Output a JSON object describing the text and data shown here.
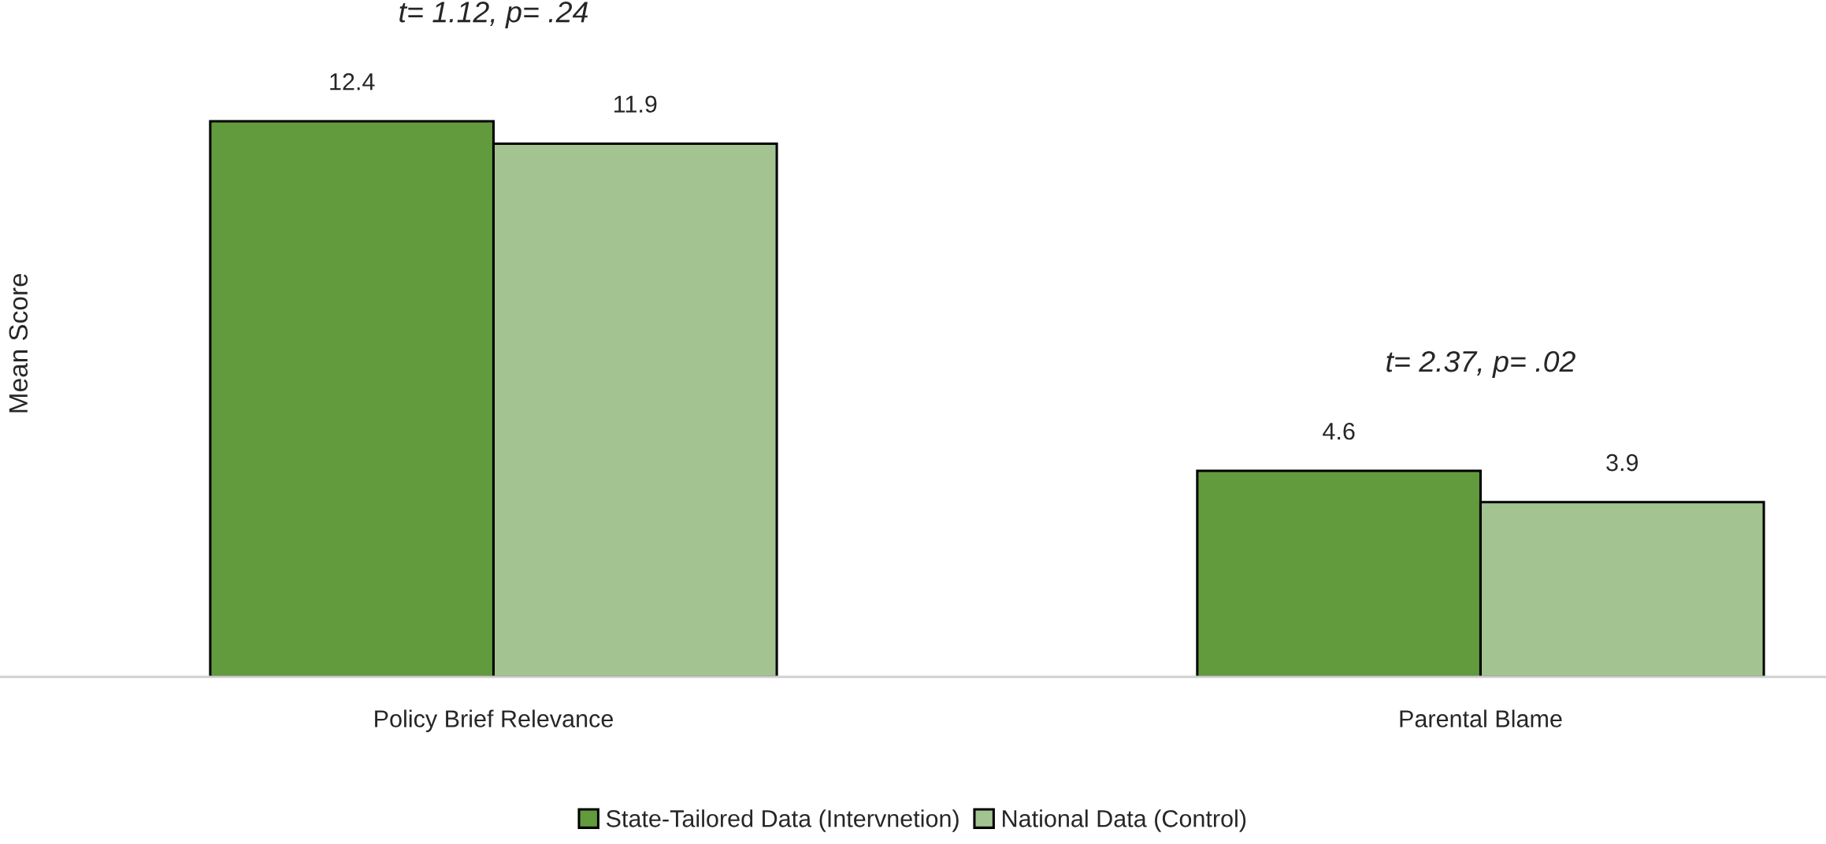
{
  "chart_data": {
    "type": "bar",
    "ylabel": "Mean Score",
    "categories": [
      "Policy Brief Relevance",
      "Parental Blame"
    ],
    "series": [
      {
        "name": "State-Tailored Data (Intervnetion)",
        "color": "#629b3e",
        "values": [
          12.4,
          4.6
        ]
      },
      {
        "name": "National Data (Control)",
        "color": "#a3c490",
        "values": [
          11.9,
          3.9
        ]
      }
    ],
    "tick_labels": "x",
    "data_labels": true,
    "grid": false,
    "legend": "bottom",
    "annotations": [
      "t= 1.12, p= .24",
      "t= 2.37, p= .02"
    ]
  }
}
